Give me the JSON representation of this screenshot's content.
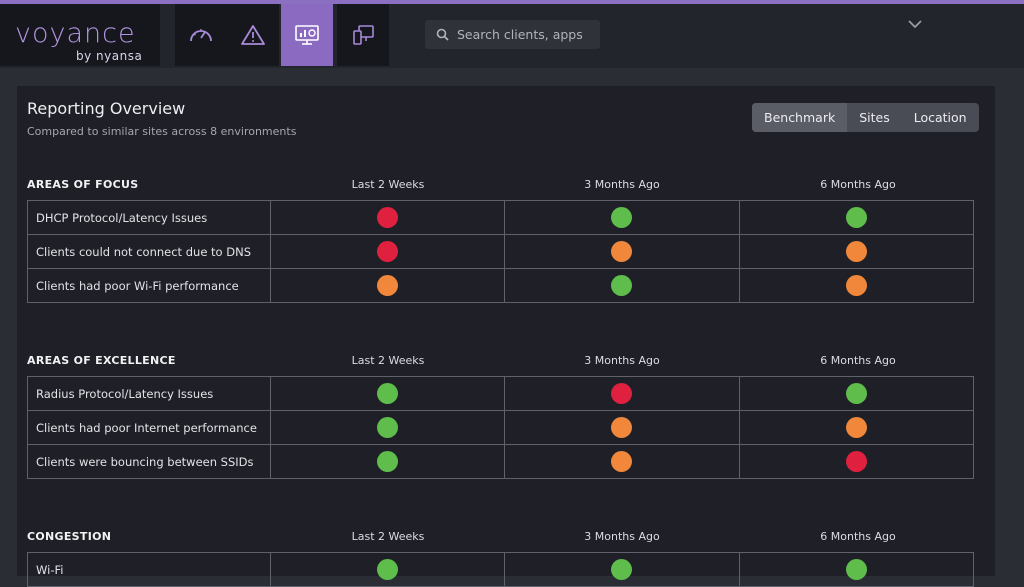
{
  "brand": {
    "name": "voyance",
    "sub": "by nyansa",
    "color": "#b193e0"
  },
  "nav": [
    {
      "icon": "speedometer-icon",
      "active": false
    },
    {
      "icon": "warning-icon",
      "active": false
    },
    {
      "icon": "reporting-monitor-icon",
      "active": true
    },
    {
      "icon": "devices-icon",
      "active": false
    }
  ],
  "search": {
    "placeholder": "Search clients, apps an"
  },
  "header": {
    "dropdown_icon": "chevron-down-icon"
  },
  "report": {
    "title": "Reporting Overview",
    "subtitle": "Compared to similar sites across 8 environments",
    "segments": [
      "Benchmark",
      "Sites",
      "Location"
    ],
    "active_segment": "Benchmark"
  },
  "columns": [
    "Last 2 Weeks",
    "3 Months Ago",
    "6 Months Ago"
  ],
  "status_colors": {
    "red": "#e0203f",
    "orange": "#f0873a",
    "green": "#5ebd4b"
  },
  "sections": [
    {
      "title": "AREAS OF FOCUS",
      "rows": [
        {
          "label": "DHCP Protocol/Latency Issues",
          "status": [
            "red",
            "green",
            "green"
          ]
        },
        {
          "label": "Clients could not connect due to DNS",
          "status": [
            "red",
            "orange",
            "orange"
          ]
        },
        {
          "label": "Clients had poor Wi-Fi performance",
          "status": [
            "orange",
            "green",
            "orange"
          ]
        }
      ]
    },
    {
      "title": "AREAS OF EXCELLENCE",
      "rows": [
        {
          "label": "Radius Protocol/Latency Issues",
          "status": [
            "green",
            "red",
            "green"
          ]
        },
        {
          "label": "Clients had poor Internet performance",
          "status": [
            "green",
            "orange",
            "orange"
          ]
        },
        {
          "label": "Clients were bouncing between SSIDs",
          "status": [
            "green",
            "orange",
            "red"
          ]
        }
      ]
    },
    {
      "title": "CONGESTION",
      "rows": [
        {
          "label": "Wi-Fi",
          "status": [
            "green",
            "green",
            "green"
          ]
        }
      ]
    }
  ]
}
